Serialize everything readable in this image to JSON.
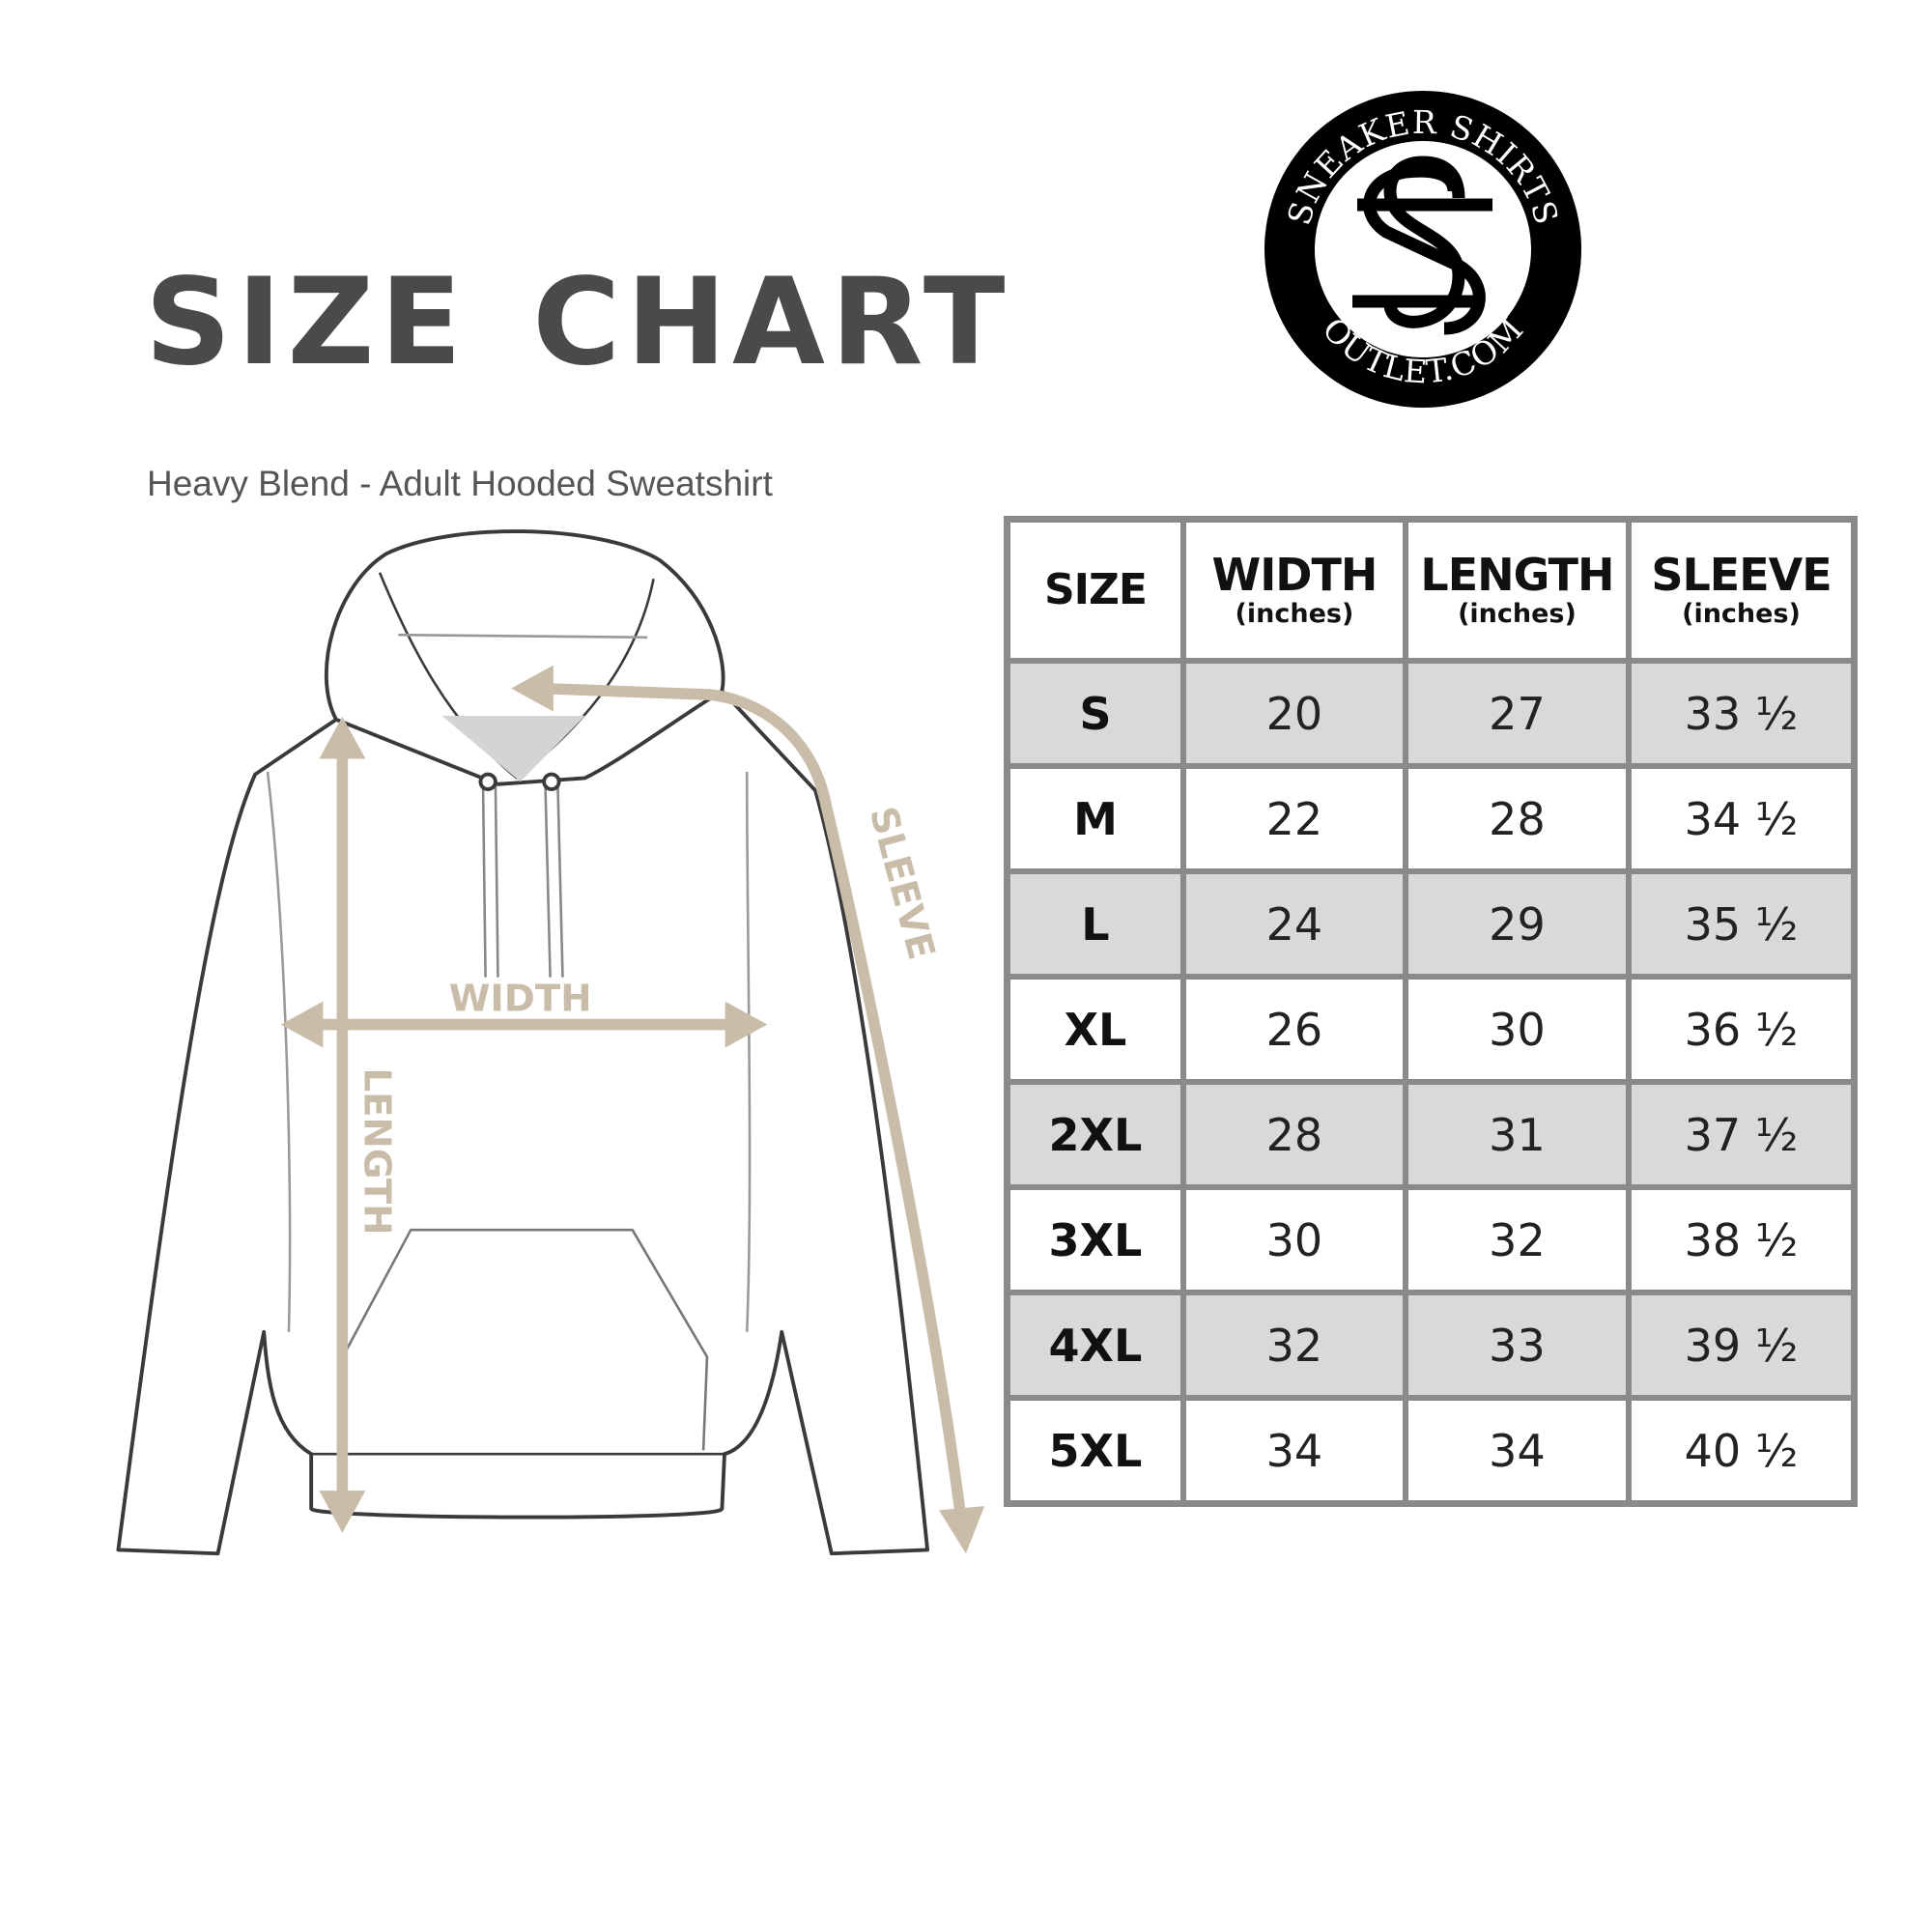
{
  "header": {
    "title": "SIZE CHART",
    "subtitle": "Heavy Blend - Adult Hooded Sweatshirt"
  },
  "logo": {
    "top_text": "SNEAKER SHIRTS",
    "bottom_text": "OUTLET.COM",
    "monogram": "SS"
  },
  "diagram": {
    "width_label": "WIDTH",
    "length_label": "LENGTH",
    "sleeve_label": "SLEEVE",
    "arrow_color": "#c9bca8",
    "outline_color": "#3a3a3a"
  },
  "table": {
    "headers": [
      {
        "label": "SIZE",
        "unit": ""
      },
      {
        "label": "WIDTH",
        "unit": "(inches)"
      },
      {
        "label": "LENGTH",
        "unit": "(inches)"
      },
      {
        "label": "SLEEVE",
        "unit": "(inches)"
      }
    ],
    "rows": [
      [
        "S",
        "20",
        "27",
        "33 ½"
      ],
      [
        "M",
        "22",
        "28",
        "34 ½"
      ],
      [
        "L",
        "24",
        "29",
        "35 ½"
      ],
      [
        "XL",
        "26",
        "30",
        "36 ½"
      ],
      [
        "2XL",
        "28",
        "31",
        "37 ½"
      ],
      [
        "3XL",
        "30",
        "32",
        "38 ½"
      ],
      [
        "4XL",
        "32",
        "33",
        "39 ½"
      ],
      [
        "5XL",
        "34",
        "34",
        "40 ½"
      ]
    ],
    "stripe_color": "#d9d9d9",
    "border_color": "#8a8a8a"
  }
}
